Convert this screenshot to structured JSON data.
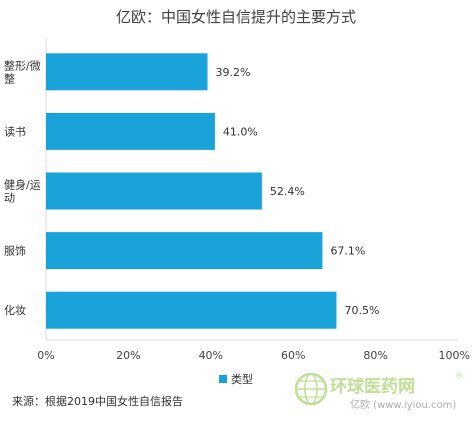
{
  "chart_data": {
    "type": "bar",
    "orientation": "horizontal",
    "title": "亿欧：中国女性自信提升的主要方式",
    "categories": [
      "整形/微整",
      "读书",
      "健身/运动",
      "服饰",
      "化妆"
    ],
    "category_lines": [
      [
        "整形/微",
        "整"
      ],
      [
        "读书"
      ],
      [
        "健身/运",
        "动"
      ],
      [
        "服饰"
      ],
      [
        "化妆"
      ]
    ],
    "series": [
      {
        "name": "类型",
        "values": [
          39.2,
          41.0,
          52.4,
          67.1,
          70.5
        ],
        "value_labels": [
          "39.2%",
          "41.0%",
          "52.4%",
          "67.1%",
          "70.5%"
        ],
        "color": "#1aa3d8"
      }
    ],
    "xlim": [
      0,
      100
    ],
    "xticks": [
      0,
      20,
      40,
      60,
      80,
      100
    ],
    "xtick_labels": [
      "0%",
      "20%",
      "40%",
      "60%",
      "80%",
      "100%"
    ],
    "grid": false,
    "legend_position": "bottom",
    "legend_label": "类型",
    "source": "来源：根据2019中国女性自信报告"
  },
  "watermark": {
    "brand": "环球医药网",
    "url": "亿欧 (www.iyiou.com)"
  },
  "colors": {
    "bar": "#1aa3d8",
    "axis": "#d9d9d9",
    "watermark_green": "#8cc63f"
  }
}
